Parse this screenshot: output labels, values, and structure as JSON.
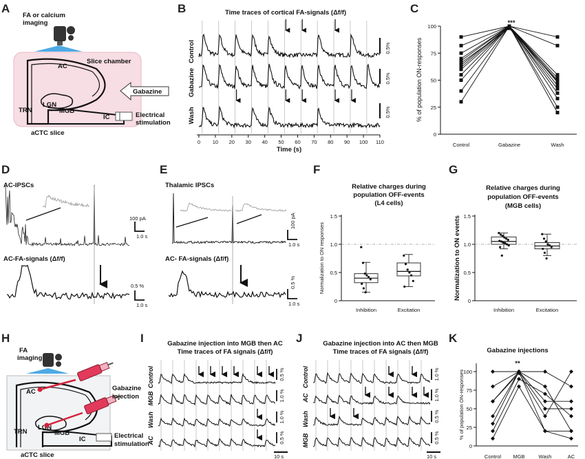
{
  "panels": [
    "A",
    "B",
    "C",
    "D",
    "E",
    "F",
    "G",
    "H",
    "I",
    "J",
    "K"
  ],
  "A": {
    "imaging": [
      "FA or calcium",
      "imaging"
    ],
    "slice_chamber": "Slice chamber",
    "ac": "AC",
    "lgn": "LGN",
    "mgb": "MGB",
    "trn": "TRN",
    "ic": "IC",
    "gabazine": "Gabazine",
    "stim": [
      "Electrical",
      "stimulation"
    ],
    "slice": "aCTC slice"
  },
  "B": {
    "title": "Time traces of cortical FA-signals (Δf/f)",
    "rows": [
      "Control",
      "Gabazine",
      "Wash"
    ],
    "scale": "0.5%",
    "xlabel": "Time (s)",
    "xticks": [
      "0",
      "10",
      "20",
      "30",
      "40",
      "50",
      "60",
      "70",
      "80",
      "90",
      "100",
      "110"
    ]
  },
  "C": {
    "ylabel": "% of population ON-responses",
    "signif": "***",
    "yticks": [
      "0",
      "25",
      "50",
      "75",
      "100"
    ]
  },
  "D": {
    "top": "AC-IPSCs",
    "bottom": "AC-FA-signals (Δf/f)",
    "scale_i": "100 pA",
    "scale_t": "1.0 s",
    "scale_v": "0.5 %",
    "scale_t2": "1.0 s"
  },
  "E": {
    "top": "Thalamic IPSCs",
    "bottom": "AC- FA-signals (Δf/f)",
    "scale_i": "100 pA",
    "scale_t": "1.0 s",
    "scale_v": "0.5 %",
    "scale_t2": "1.0 s"
  },
  "F": {
    "title": [
      "Relative charges during",
      "population OFF-events",
      "(L4 cells)"
    ],
    "ylabel": "Normalization to ON responses",
    "yticks": [
      "0",
      "0.5",
      "1.0",
      "1.5"
    ]
  },
  "G": {
    "title": [
      "Relative charges during",
      "population OFF-events",
      "(MGB cells)"
    ],
    "ylabel": "Normalization to ON events",
    "yticks": [
      "0",
      "0.5",
      "1.0",
      "1.5"
    ]
  },
  "H": {
    "imaging": [
      "FA",
      "imaging"
    ],
    "ac": "AC",
    "lgn": "LGN",
    "mgb": "MGB",
    "trn": "TRN",
    "ic": "IC",
    "gabazine": [
      "Gabazine",
      "injection"
    ],
    "stim": [
      "Electrical",
      "stimulation"
    ],
    "slice": "aCTC slice"
  },
  "I": {
    "title": [
      "Gabazine injection into MGB then AC",
      "Time traces of FA signals (Δf/f)"
    ],
    "rows": [
      "Control",
      "MGB",
      "Wash",
      "AC"
    ],
    "scales": [
      "0.5 %",
      "1.0 %",
      "1.0 %",
      "0.5 %"
    ],
    "time_scale": "10 s"
  },
  "J": {
    "title": [
      "Gabazine injection into AC then MGB",
      "Time traces of FA signals (Δf/f)"
    ],
    "rows": [
      "Control",
      "AC",
      "Wash",
      "MGB"
    ],
    "scales": [
      "1.0 %",
      "1.0 %",
      "0.5 %",
      "0.5 %"
    ],
    "time_scale": "10 s"
  },
  "K": {
    "title": "Gabazine injections",
    "ylabel": "% of population ON-responses",
    "signif": "**",
    "yticks": [
      "0",
      "25",
      "50",
      "75",
      "100"
    ]
  },
  "chart_data": [
    {
      "type": "line",
      "panel": "C",
      "categories": [
        "Control",
        "Gabazine",
        "Wash"
      ],
      "ylim": [
        0,
        100
      ],
      "series": [
        {
          "values": [
            90,
            100,
            90
          ]
        },
        {
          "values": [
            82,
            100,
            82
          ]
        },
        {
          "values": [
            75,
            100,
            55
          ]
        },
        {
          "values": [
            70,
            100,
            52
          ]
        },
        {
          "values": [
            68,
            100,
            50
          ]
        },
        {
          "values": [
            66,
            98,
            49
          ]
        },
        {
          "values": [
            64,
            100,
            48
          ]
        },
        {
          "values": [
            62,
            100,
            45
          ]
        },
        {
          "values": [
            60,
            99,
            42
          ]
        },
        {
          "values": [
            55,
            100,
            38
          ]
        },
        {
          "values": [
            50,
            100,
            33
          ]
        },
        {
          "values": [
            40,
            100,
            25
          ]
        },
        {
          "values": [
            30,
            100,
            20
          ]
        }
      ]
    },
    {
      "type": "scatter",
      "panel": "F",
      "categories": [
        "Inhibition",
        "Excitation"
      ],
      "ylim": [
        0,
        1.5
      ],
      "boxes": [
        {
          "min": 0.15,
          "q1": 0.32,
          "median": 0.4,
          "q3": 0.48,
          "max": 0.68
        },
        {
          "min": 0.25,
          "q1": 0.44,
          "median": 0.52,
          "q3": 0.67,
          "max": 0.82
        }
      ],
      "points": [
        [
          0.95,
          0.67,
          0.48,
          0.45,
          0.42,
          0.38,
          0.3,
          0.22,
          0.15
        ],
        [
          0.8,
          0.65,
          0.55,
          0.5,
          0.45,
          0.35,
          0.25
        ]
      ]
    },
    {
      "type": "scatter",
      "panel": "G",
      "categories": [
        "Inhibition",
        "Excitation"
      ],
      "ylim": [
        0,
        1.5
      ],
      "reference": 1.0,
      "boxes": [
        {
          "min": 0.92,
          "q1": 1.0,
          "median": 1.05,
          "q3": 1.13,
          "max": 1.2
        },
        {
          "min": 0.8,
          "q1": 0.92,
          "median": 0.97,
          "q3": 1.03,
          "max": 1.18
        }
      ],
      "points": [
        [
          1.2,
          1.17,
          1.15,
          1.12,
          1.1,
          1.08,
          1.06,
          1.05,
          1.03,
          1.02,
          1.0,
          0.98,
          0.95,
          0.8
        ],
        [
          1.18,
          1.1,
          1.05,
          1.0,
          0.98,
          0.95,
          0.92,
          0.85,
          0.75
        ]
      ]
    },
    {
      "type": "line",
      "panel": "K",
      "categories": [
        "Control",
        "MGB",
        "Wash",
        "AC"
      ],
      "ylim": [
        0,
        100
      ],
      "series": [
        {
          "values": [
            100,
            100,
            80,
            20
          ]
        },
        {
          "values": [
            80,
            100,
            60,
            60
          ]
        },
        {
          "values": [
            60,
            100,
            100,
            80
          ]
        },
        {
          "values": [
            60,
            98,
            40,
            100
          ]
        },
        {
          "values": [
            40,
            100,
            50,
            50
          ]
        },
        {
          "values": [
            30,
            100,
            20,
            10
          ]
        },
        {
          "values": [
            20,
            90,
            70,
            40
          ]
        },
        {
          "values": [
            10,
            80,
            20,
            20
          ]
        }
      ]
    }
  ]
}
